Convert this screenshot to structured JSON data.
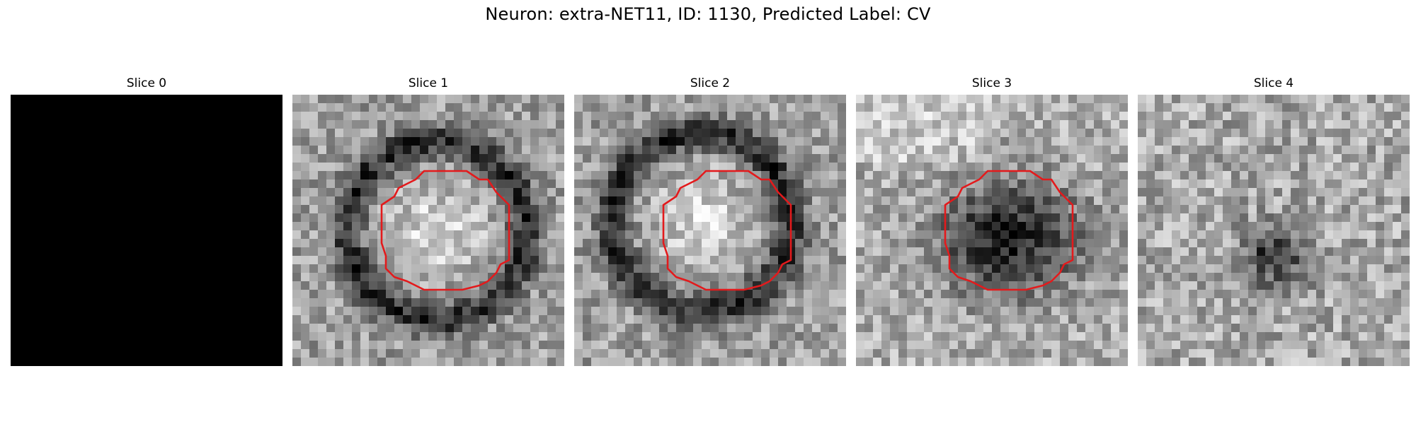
{
  "figure": {
    "suptitle": "Neuron: extra-NET11, ID: 1130, Predicted Label: CV",
    "outline_color": "#e31a1c",
    "slices": [
      {
        "title": "Slice 0",
        "content": "blank-black",
        "outline": false
      },
      {
        "title": "Slice 1",
        "content": "ring-bright-center",
        "outline": true
      },
      {
        "title": "Slice 2",
        "content": "ring-bright-center",
        "outline": true
      },
      {
        "title": "Slice 3",
        "content": "dark-blob",
        "outline": true
      },
      {
        "title": "Slice 4",
        "content": "small-dark-blob",
        "outline": false
      }
    ]
  }
}
